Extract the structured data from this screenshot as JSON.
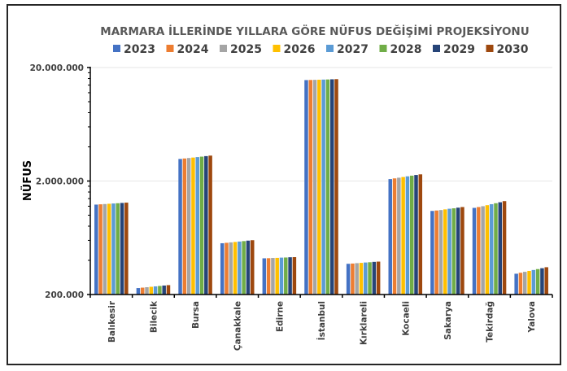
{
  "chart_data": {
    "type": "bar",
    "title": "MARMARA İLLERİNDE YILLARA GÖRE NÜFUS DEĞİŞİMİ PROJEKSİYONU",
    "xlabel": "",
    "ylabel": "NÜFUS",
    "yscale": "log",
    "ylim": [
      200000,
      20000000
    ],
    "yticks": [
      200000,
      2000000,
      20000000
    ],
    "ytick_labels": [
      "200.000",
      "2.000.000",
      "20.000.000"
    ],
    "grid": true,
    "legend_position": "top",
    "categories": [
      "Balıkesir",
      "Bilecik",
      "Bursa",
      "Çanakkale",
      "Edirne",
      "İstanbul",
      "Kırklareli",
      "Kocaeli",
      "Sakarya",
      "Tekirdağ",
      "Yalova"
    ],
    "series": [
      {
        "name": "2023",
        "color": "#4472C4",
        "values": [
          1240000,
          228000,
          3130000,
          566000,
          417000,
          15500000,
          373000,
          2080000,
          1090000,
          1160000,
          305000
        ]
      },
      {
        "name": "2024",
        "color": "#ED7D31",
        "values": [
          1247000,
          230000,
          3160000,
          571000,
          418000,
          15540000,
          375000,
          2110000,
          1100000,
          1180000,
          311000
        ]
      },
      {
        "name": "2025",
        "color": "#A5A5A5",
        "values": [
          1254000,
          232000,
          3190000,
          576000,
          420000,
          15580000,
          378000,
          2140000,
          1110000,
          1200000,
          317000
        ]
      },
      {
        "name": "2026",
        "color": "#FFC000",
        "values": [
          1261000,
          234000,
          3220000,
          581000,
          421000,
          15620000,
          380000,
          2170000,
          1125000,
          1225000,
          323000
        ]
      },
      {
        "name": "2027",
        "color": "#5B9BD5",
        "values": [
          1268000,
          236000,
          3250000,
          586000,
          423000,
          15660000,
          383000,
          2200000,
          1140000,
          1250000,
          329000
        ]
      },
      {
        "name": "2028",
        "color": "#70AD47",
        "values": [
          1275000,
          238000,
          3280000,
          591000,
          424000,
          15700000,
          385000,
          2230000,
          1150000,
          1275000,
          335000
        ]
      },
      {
        "name": "2029",
        "color": "#264478",
        "values": [
          1282000,
          240000,
          3315000,
          597000,
          426000,
          15750000,
          388000,
          2260000,
          1165000,
          1300000,
          341000
        ]
      },
      {
        "name": "2030",
        "color": "#9E480E",
        "values": [
          1290000,
          242000,
          3350000,
          602000,
          427000,
          15800000,
          390000,
          2290000,
          1180000,
          1330000,
          348000
        ]
      }
    ]
  }
}
